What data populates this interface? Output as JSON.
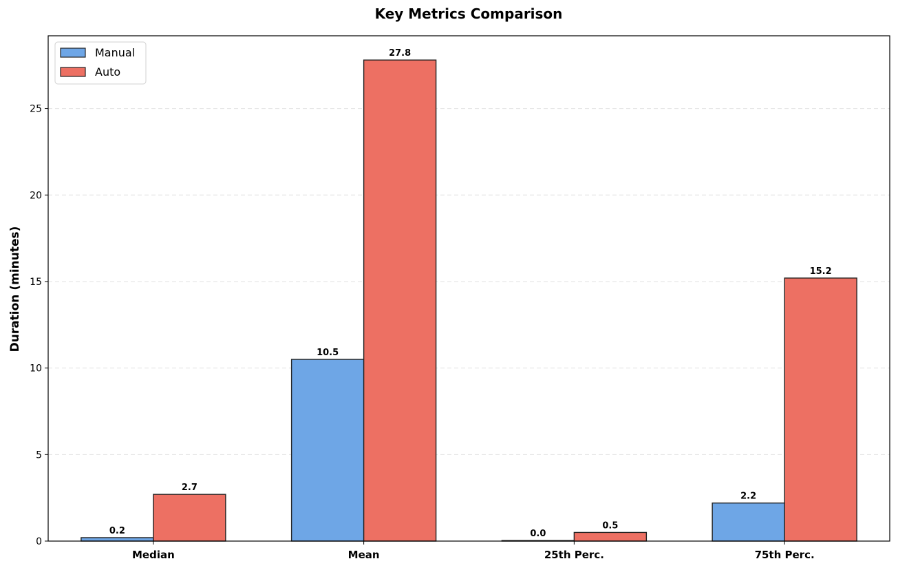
{
  "chart_data": {
    "type": "bar",
    "title": "Key Metrics Comparison",
    "xlabel": "",
    "ylabel": "Duration (minutes)",
    "categories": [
      "Median",
      "Mean",
      "25th Perc.",
      "75th Perc."
    ],
    "series": [
      {
        "name": "Manual",
        "values": [
          0.2,
          10.5,
          0.0,
          2.2
        ],
        "labels": [
          "0.2",
          "10.5",
          "0.0",
          "2.2"
        ],
        "color": "#6ea6e6"
      },
      {
        "name": "Auto",
        "values": [
          2.7,
          27.8,
          0.5,
          15.2
        ],
        "labels": [
          "2.7",
          "27.8",
          "0.5",
          "15.2"
        ],
        "color": "#ed7063"
      }
    ],
    "ylim": [
      0,
      29.2
    ],
    "yticks": [
      0,
      5,
      10,
      15,
      20,
      25
    ],
    "grid": "y-dashed",
    "legend": "top-left",
    "edge_color": "#222222"
  }
}
